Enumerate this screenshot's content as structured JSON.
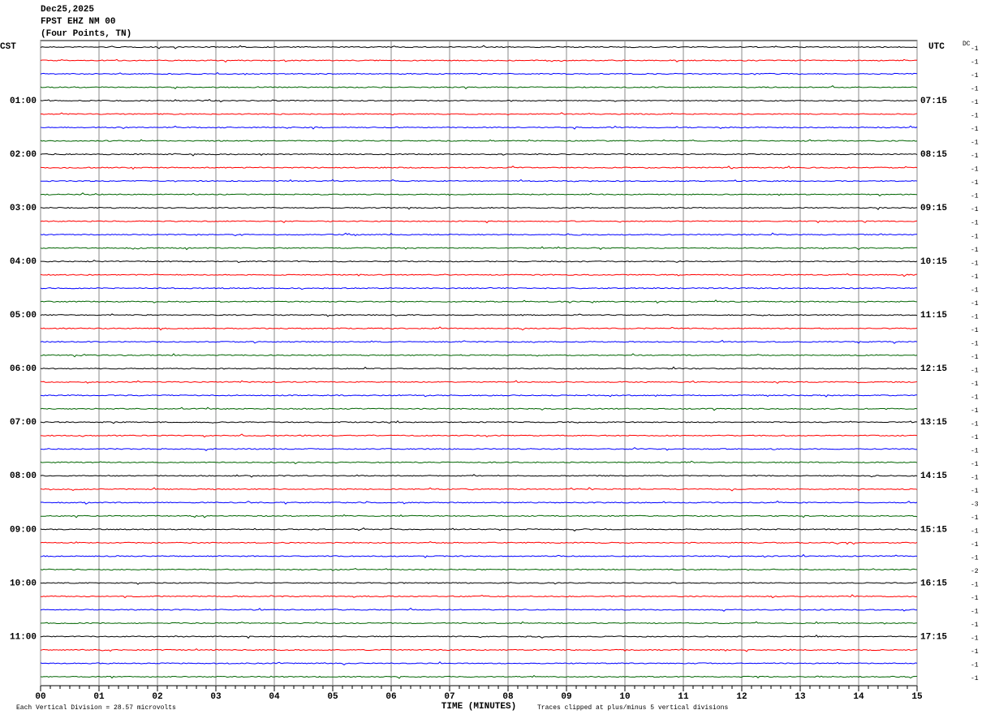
{
  "header": {
    "date": "Dec25,2025",
    "station": "FPST EHZ NM 00",
    "location": "(Four Points, TN)"
  },
  "left_header": "CST",
  "right_header": "UTC",
  "dc_label": "DC",
  "left_labels": [
    "01:00",
    "02:00",
    "03:00",
    "04:00",
    "05:00",
    "06:00",
    "07:00",
    "08:00",
    "09:00",
    "10:00",
    "11:00"
  ],
  "right_labels": [
    "07:15",
    "08:15",
    "09:15",
    "10:15",
    "11:15",
    "12:15",
    "13:15",
    "14:15",
    "15:15",
    "16:15",
    "17:15"
  ],
  "trace_offsets": [
    -1,
    -1,
    -1,
    -1,
    -1,
    -1,
    -1,
    -1,
    -1,
    -1,
    -1,
    -1,
    -1,
    -1,
    -1,
    -1,
    -1,
    -1,
    -1,
    -1,
    -1,
    -1,
    -1,
    -1,
    -1,
    -1,
    -1,
    -1,
    -1,
    -1,
    -1,
    -1,
    -1,
    -1,
    -3,
    -1,
    -1,
    -1,
    -1,
    -2,
    -1,
    -1,
    -1,
    -1,
    -1,
    -1,
    -1,
    -1
  ],
  "trace_colors": [
    "#000000",
    "#ff0000",
    "#0000ff",
    "#006400"
  ],
  "x_ticks": [
    "00",
    "01",
    "02",
    "03",
    "04",
    "05",
    "06",
    "07",
    "08",
    "09",
    "10",
    "11",
    "12",
    "13",
    "14",
    "15"
  ],
  "x_title": "TIME (MINUTES)",
  "footer_left": "Each Vertical Division =   28.57 microvolts",
  "footer_right": "Traces clipped at plus/minus 5 vertical divisions"
}
